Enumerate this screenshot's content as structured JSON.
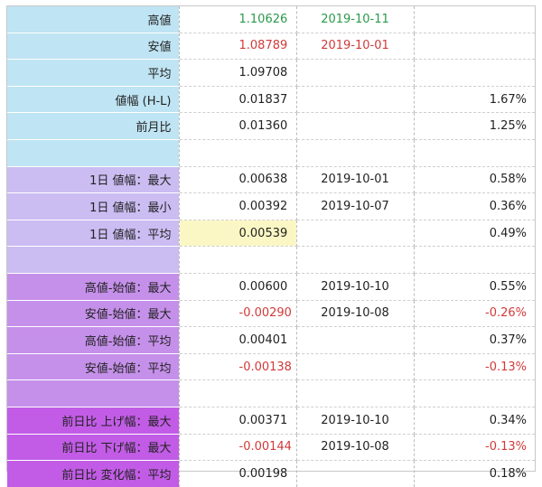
{
  "rows": [
    {
      "label": "高値",
      "value": "1.10626",
      "date": "2019-10-11",
      "pct": "",
      "color": "#bfe4f3",
      "value_color": "green",
      "date_color": "green"
    },
    {
      "label": "安値",
      "value": "1.08789",
      "date": "2019-10-01",
      "pct": "",
      "color": "#bfe4f3",
      "value_color": "red",
      "date_color": "red"
    },
    {
      "label": "平均",
      "value": "1.09708",
      "date": "",
      "pct": "",
      "color": "#bfe4f3"
    },
    {
      "label": "値幅 (H-L)",
      "value": "0.01837",
      "date": "",
      "pct": "1.67%",
      "color": "#bfe4f3"
    },
    {
      "label": "前月比",
      "value": "0.01360",
      "date": "",
      "pct": "1.25%",
      "color": "#bfe4f3"
    },
    {
      "label": "",
      "value": "",
      "date": "",
      "pct": "",
      "color": "#bfe4f3"
    },
    {
      "label": "1日 値幅：最大",
      "value": "0.00638",
      "date": "2019-10-01",
      "pct": "0.58%",
      "color": "#cbbcf2"
    },
    {
      "label": "1日 値幅：最小",
      "value": "0.00392",
      "date": "2019-10-07",
      "pct": "0.36%",
      "color": "#cbbcf2"
    },
    {
      "label": "1日 値幅：平均",
      "value": "0.00539",
      "date": "",
      "pct": "0.49%",
      "color": "#cbbcf2",
      "value_highlight": true
    },
    {
      "label": "",
      "value": "",
      "date": "",
      "pct": "",
      "color": "#cbbcf2"
    },
    {
      "label": "高値-始値：最大",
      "value": "0.00600",
      "date": "2019-10-10",
      "pct": "0.55%",
      "color": "#c590ea"
    },
    {
      "label": "安値-始値：最大",
      "value": "-0.00290",
      "date": "2019-10-08",
      "pct": "-0.26%",
      "color": "#c590ea",
      "value_color": "red",
      "pct_color": "red"
    },
    {
      "label": "高値-始値：平均",
      "value": "0.00401",
      "date": "",
      "pct": "0.37%",
      "color": "#c590ea"
    },
    {
      "label": "安値-始値：平均",
      "value": "-0.00138",
      "date": "",
      "pct": "-0.13%",
      "color": "#c590ea",
      "value_color": "red",
      "pct_color": "red"
    },
    {
      "label": "",
      "value": "",
      "date": "",
      "pct": "",
      "color": "#c590ea"
    },
    {
      "label": "前日比 上げ幅：最大",
      "value": "0.00371",
      "date": "2019-10-10",
      "pct": "0.34%",
      "color": "#c25ce6"
    },
    {
      "label": "前日比 下げ幅：最大",
      "value": "-0.00144",
      "date": "2019-10-08",
      "pct": "-0.13%",
      "color": "#c25ce6",
      "value_color": "red",
      "pct_color": "red"
    },
    {
      "label": "前日比 変化幅：平均",
      "value": "0.00198",
      "date": "",
      "pct": "0.18%",
      "color": "#c25ce6"
    }
  ]
}
